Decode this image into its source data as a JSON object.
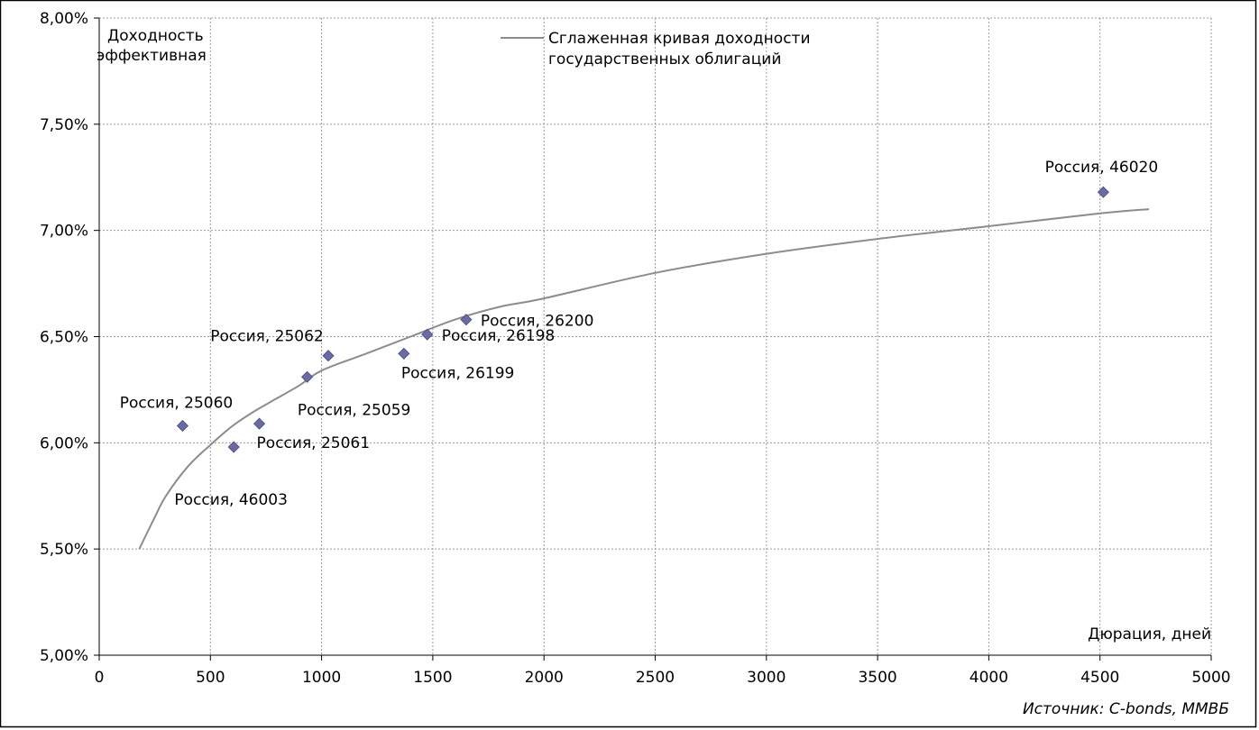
{
  "chart_data": {
    "type": "scatter",
    "ylabel_lines": [
      "Доходность",
      "эффективная"
    ],
    "xlabel": "Дюрация, дней",
    "source": "Источник: C-bonds, ММВБ",
    "xlim": [
      0,
      5000
    ],
    "ylim": [
      5.0,
      8.0
    ],
    "x_ticks": [
      {
        "value": 0,
        "label": "0"
      },
      {
        "value": 500,
        "label": "500"
      },
      {
        "value": 1000,
        "label": "1000"
      },
      {
        "value": 1500,
        "label": "1500"
      },
      {
        "value": 2000,
        "label": "2000"
      },
      {
        "value": 2500,
        "label": "2500"
      },
      {
        "value": 3000,
        "label": "3000"
      },
      {
        "value": 3500,
        "label": "3500"
      },
      {
        "value": 4000,
        "label": "4000"
      },
      {
        "value": 4500,
        "label": "4500"
      },
      {
        "value": 5000,
        "label": "5000"
      }
    ],
    "y_ticks": [
      {
        "value": 5.0,
        "label": "5,00%"
      },
      {
        "value": 5.5,
        "label": "5,50%"
      },
      {
        "value": 6.0,
        "label": "6,00%"
      },
      {
        "value": 6.5,
        "label": "6,50%"
      },
      {
        "value": 7.0,
        "label": "7,00%"
      },
      {
        "value": 7.5,
        "label": "7,50%"
      },
      {
        "value": 8.0,
        "label": "8,00%"
      }
    ],
    "grid": true,
    "legend": {
      "placement": "top-center",
      "lines": [
        "Сглаженная кривая доходности",
        "государственных облигаций"
      ],
      "color": "#8c8c8c"
    },
    "curve": {
      "color": "#8c8c8c",
      "x_start": 180,
      "x_end": 4720,
      "points": [
        {
          "x": 180,
          "y": 5.5
        },
        {
          "x": 250,
          "y": 5.65
        },
        {
          "x": 300,
          "y": 5.75
        },
        {
          "x": 400,
          "y": 5.89
        },
        {
          "x": 500,
          "y": 5.99
        },
        {
          "x": 600,
          "y": 6.08
        },
        {
          "x": 700,
          "y": 6.15
        },
        {
          "x": 800,
          "y": 6.21
        },
        {
          "x": 900,
          "y": 6.27
        },
        {
          "x": 1000,
          "y": 6.34
        },
        {
          "x": 1200,
          "y": 6.42
        },
        {
          "x": 1400,
          "y": 6.5
        },
        {
          "x": 1600,
          "y": 6.58
        },
        {
          "x": 1800,
          "y": 6.64
        },
        {
          "x": 2000,
          "y": 6.68
        },
        {
          "x": 2500,
          "y": 6.8
        },
        {
          "x": 3000,
          "y": 6.89
        },
        {
          "x": 3500,
          "y": 6.96
        },
        {
          "x": 4000,
          "y": 7.02
        },
        {
          "x": 4500,
          "y": 7.08
        },
        {
          "x": 4720,
          "y": 7.1
        }
      ]
    },
    "marker_color": "#6a6aa4",
    "points": [
      {
        "name": "Россия, 25060",
        "x": 375,
        "y": 6.08,
        "label_pos": "above-left"
      },
      {
        "name": "Россия, 46003",
        "x": 605,
        "y": 5.98,
        "label_pos": "below"
      },
      {
        "name": "Россия, 25061",
        "x": 720,
        "y": 6.09,
        "label_pos": "below-right"
      },
      {
        "name": "Россия, 25059",
        "x": 935,
        "y": 6.31,
        "label_pos": "below"
      },
      {
        "name": "Россия, 25062",
        "x": 1030,
        "y": 6.41,
        "label_pos": "above-left"
      },
      {
        "name": "Россия, 26199",
        "x": 1370,
        "y": 6.42,
        "label_pos": "below-right"
      },
      {
        "name": "Россия, 26198",
        "x": 1475,
        "y": 6.51,
        "label_pos": "right"
      },
      {
        "name": "Россия, 26200",
        "x": 1650,
        "y": 6.58,
        "label_pos": "right"
      },
      {
        "name": "Россия, 46020",
        "x": 4515,
        "y": 7.18,
        "label_pos": "above"
      }
    ]
  }
}
